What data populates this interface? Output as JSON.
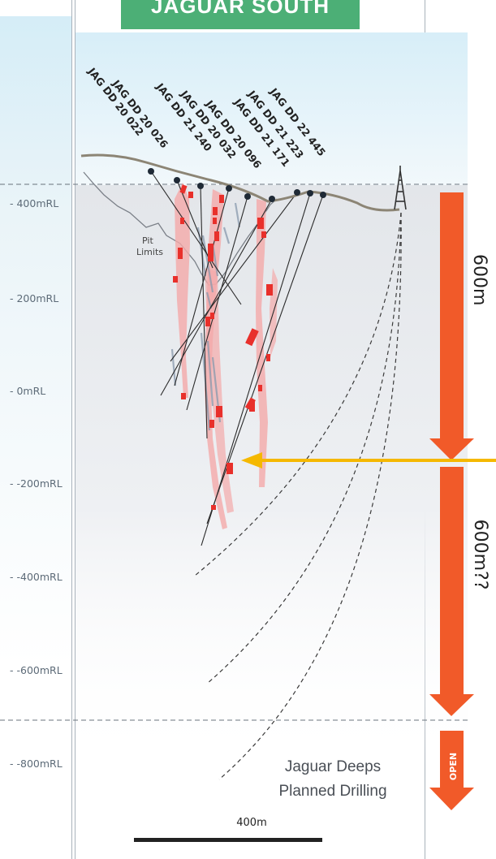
{
  "title": "JAGUAR SOUTH",
  "rl_labels": [
    "400mRL",
    "200mRL",
    "0mRL",
    "-200mRL",
    "-400mRL",
    "-600mRL",
    "-800mRL"
  ],
  "holes": [
    "JAG DD 20 022",
    "JAG DD 20 026",
    "JAG DD 21 240",
    "JAG DD 20 032",
    "JAG DD 20 096",
    "JAG DD 21 171",
    "JAG DD 21 223",
    "JAG DD 22 445"
  ],
  "pit_label": "Pit\nLimits",
  "depth_labels": [
    "600m",
    "600m??"
  ],
  "open_badge": "OPEN",
  "deeps_label": "Jaguar Deeps\nPlanned Drilling",
  "scale_label": "400m",
  "colors": {
    "title_bg": "#4caf76",
    "depth_arrow": "#f15a29",
    "pointer_arrow": "#f5b800",
    "lode": "#f4a9a9",
    "intercept": "#e8302b"
  }
}
